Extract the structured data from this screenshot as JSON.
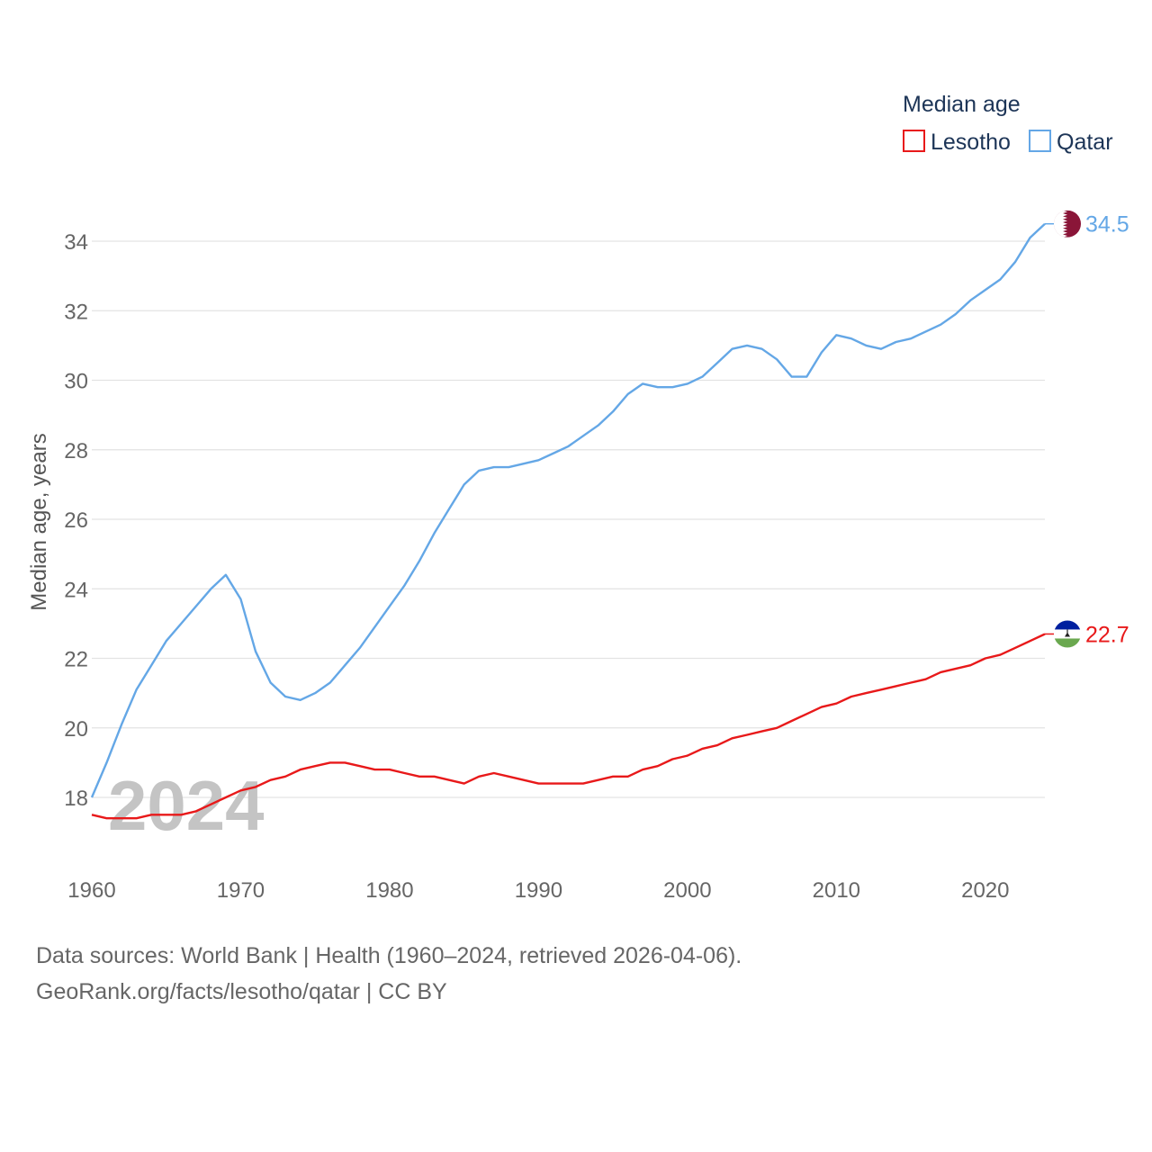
{
  "chart_data": {
    "type": "line",
    "title": "Median age",
    "xlabel": "",
    "ylabel": "Median age, years",
    "xlim": [
      1960,
      2024
    ],
    "ylim": [
      17,
      35
    ],
    "x_ticks": [
      1960,
      1970,
      1980,
      1990,
      2000,
      2010,
      2020
    ],
    "y_ticks": [
      18,
      20,
      22,
      24,
      26,
      28,
      30,
      32,
      34
    ],
    "grid": true,
    "legend_position": "top-right",
    "year_label": "2024",
    "x": [
      1960,
      1961,
      1962,
      1963,
      1964,
      1965,
      1966,
      1967,
      1968,
      1969,
      1970,
      1971,
      1972,
      1973,
      1974,
      1975,
      1976,
      1977,
      1978,
      1979,
      1980,
      1981,
      1982,
      1983,
      1984,
      1985,
      1986,
      1987,
      1988,
      1989,
      1990,
      1991,
      1992,
      1993,
      1994,
      1995,
      1996,
      1997,
      1998,
      1999,
      2000,
      2001,
      2002,
      2003,
      2004,
      2005,
      2006,
      2007,
      2008,
      2009,
      2010,
      2011,
      2012,
      2013,
      2014,
      2015,
      2016,
      2017,
      2018,
      2019,
      2020,
      2021,
      2022,
      2023,
      2024
    ],
    "series": [
      {
        "name": "Lesotho",
        "color": "#e8191a",
        "end_label": "22.7",
        "flag_icon": "lesotho-flag-icon",
        "values": [
          17.5,
          17.4,
          17.4,
          17.4,
          17.5,
          17.5,
          17.5,
          17.6,
          17.8,
          18.0,
          18.2,
          18.3,
          18.5,
          18.6,
          18.8,
          18.9,
          19.0,
          19.0,
          18.9,
          18.8,
          18.8,
          18.7,
          18.6,
          18.6,
          18.5,
          18.4,
          18.6,
          18.7,
          18.6,
          18.5,
          18.4,
          18.4,
          18.4,
          18.4,
          18.5,
          18.6,
          18.6,
          18.8,
          18.9,
          19.1,
          19.2,
          19.4,
          19.5,
          19.7,
          19.8,
          19.9,
          20.0,
          20.2,
          20.4,
          20.6,
          20.7,
          20.9,
          21.0,
          21.1,
          21.2,
          21.3,
          21.4,
          21.6,
          21.7,
          21.8,
          22.0,
          22.1,
          22.3,
          22.5,
          22.7
        ]
      },
      {
        "name": "Qatar",
        "color": "#64a7e6",
        "end_label": "34.5",
        "flag_icon": "qatar-flag-icon",
        "values": [
          18.0,
          19.0,
          20.1,
          21.1,
          21.8,
          22.5,
          23.0,
          23.5,
          24.0,
          24.4,
          23.7,
          22.2,
          21.3,
          20.9,
          20.8,
          21.0,
          21.3,
          21.8,
          22.3,
          22.9,
          23.5,
          24.1,
          24.8,
          25.6,
          26.3,
          27.0,
          27.4,
          27.5,
          27.5,
          27.6,
          27.7,
          27.9,
          28.1,
          28.4,
          28.7,
          29.1,
          29.6,
          29.9,
          29.8,
          29.8,
          29.9,
          30.1,
          30.5,
          30.9,
          31.0,
          30.9,
          30.6,
          30.1,
          30.1,
          30.8,
          31.3,
          31.2,
          31.0,
          30.9,
          31.1,
          31.2,
          31.4,
          31.6,
          31.9,
          32.3,
          32.6,
          32.9,
          33.4,
          34.1,
          34.5
        ]
      }
    ]
  },
  "footer": {
    "sources_line": "Data sources: World Bank | Health (1960–2024, retrieved 2026-04-06).",
    "credit_line": "GeoRank.org/facts/lesotho/qatar | CC BY"
  }
}
